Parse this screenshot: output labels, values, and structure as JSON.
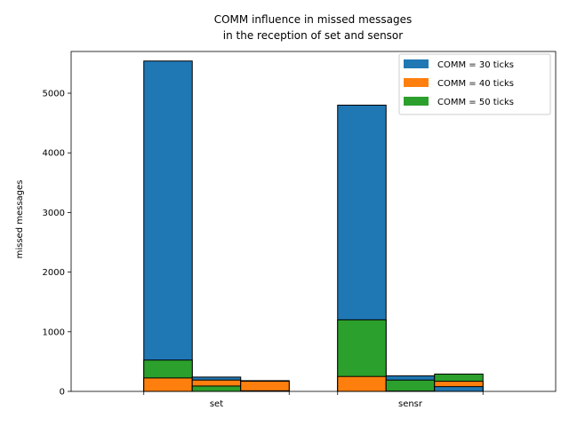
{
  "chart_data": {
    "type": "bar",
    "title_lines": [
      "COMM influence in missed messages",
      "in the reception of set and sensor"
    ],
    "xlabel": "",
    "ylabel": "missed messages",
    "categories": [
      "set",
      "sensr"
    ],
    "ylim": [
      0,
      5700
    ],
    "yticks": [
      0,
      1000,
      2000,
      3000,
      4000,
      5000
    ],
    "grid": false,
    "legend_position": "top-right",
    "series": [
      {
        "name": "COMM  = 30 ticks",
        "color": "#1f77b4"
      },
      {
        "name": "COMM  = 40 ticks",
        "color": "#ff7f0e"
      },
      {
        "name": "COMM  = 50 ticks",
        "color": "#2ca02c"
      }
    ],
    "bars": [
      {
        "category": "set",
        "offset": -1,
        "segments": [
          {
            "series": 0,
            "value": 5540
          },
          {
            "series": 2,
            "value": 525
          },
          {
            "series": 1,
            "value": 225
          }
        ]
      },
      {
        "category": "set",
        "offset": 0,
        "segments": [
          {
            "series": 0,
            "value": 240
          },
          {
            "series": 1,
            "value": 190
          },
          {
            "series": 2,
            "value": 90
          }
        ]
      },
      {
        "category": "set",
        "offset": 1,
        "segments": [
          {
            "series": 2,
            "value": 180
          },
          {
            "series": 1,
            "value": 170
          },
          {
            "series": 0,
            "value": 10
          }
        ]
      },
      {
        "category": "sensr",
        "offset": -1,
        "segments": [
          {
            "series": 0,
            "value": 4800
          },
          {
            "series": 2,
            "value": 1200
          },
          {
            "series": 1,
            "value": 250
          }
        ]
      },
      {
        "category": "sensr",
        "offset": 0,
        "segments": [
          {
            "series": 0,
            "value": 260
          },
          {
            "series": 2,
            "value": 190
          },
          {
            "series": 1,
            "value": 5
          }
        ]
      },
      {
        "category": "sensr",
        "offset": 1,
        "segments": [
          {
            "series": 2,
            "value": 290
          },
          {
            "series": 1,
            "value": 170
          },
          {
            "series": 0,
            "value": 80
          }
        ]
      }
    ]
  }
}
